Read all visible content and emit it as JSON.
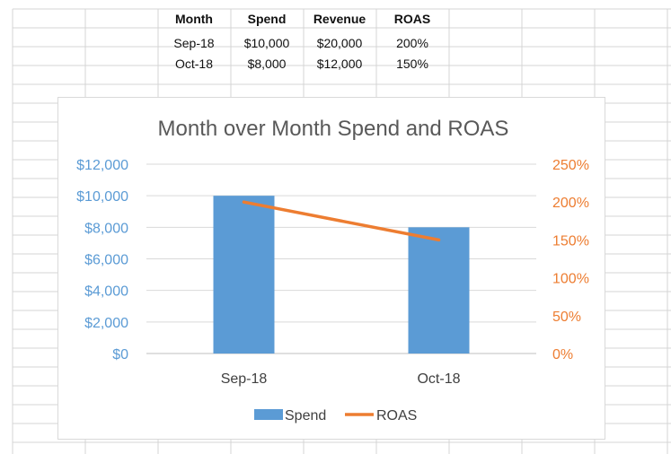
{
  "table": {
    "headers": [
      "Month",
      "Spend",
      "Revenue",
      "ROAS"
    ],
    "rows": [
      [
        "Sep-18",
        "$10,000",
        "$20,000",
        "200%"
      ],
      [
        "Oct-18",
        "$8,000",
        "$12,000",
        "150%"
      ]
    ]
  },
  "chart_data": {
    "type": "bar",
    "title": "Month over Month Spend and ROAS",
    "categories": [
      "Sep-18",
      "Oct-18"
    ],
    "series": [
      {
        "name": "Spend",
        "type": "bar",
        "axis": "left",
        "values": [
          10000,
          8000
        ],
        "color": "#5b9bd5"
      },
      {
        "name": "ROAS",
        "type": "line",
        "axis": "right",
        "values": [
          200,
          150
        ],
        "color": "#ed7d31"
      }
    ],
    "y_left": {
      "min": 0,
      "max": 12000,
      "ticks": [
        "$0",
        "$2,000",
        "$4,000",
        "$6,000",
        "$8,000",
        "$10,000",
        "$12,000"
      ]
    },
    "y_right": {
      "min": 0,
      "max": 250,
      "ticks": [
        "0%",
        "50%",
        "100%",
        "150%",
        "200%",
        "250%"
      ]
    },
    "grid": true,
    "legend": "bottom"
  }
}
